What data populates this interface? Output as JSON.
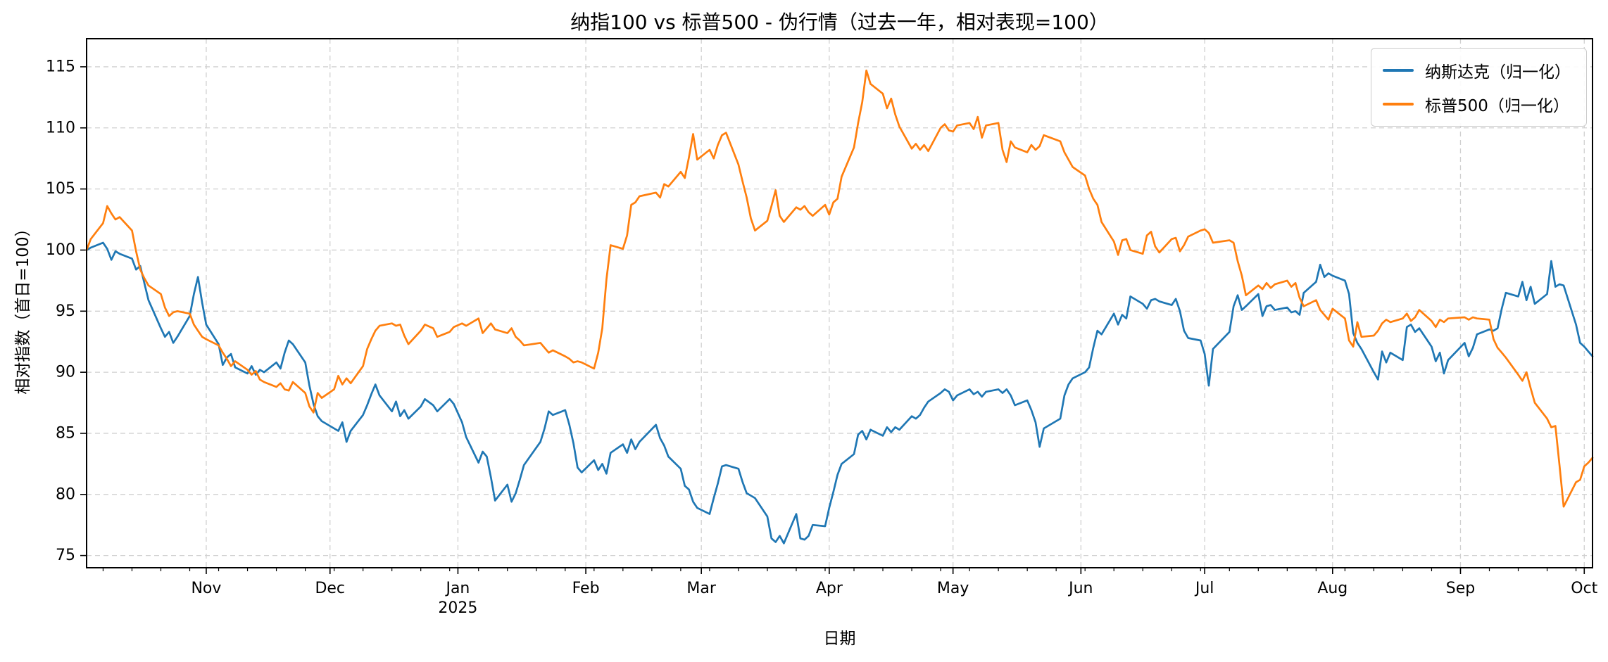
{
  "chart_data": {
    "type": "line",
    "title": "纳指100 vs 标普500 - 伪行情（过去一年，相对表现=100）",
    "xlabel": "日期",
    "ylabel": "相对指数（首日=100）",
    "grid": true,
    "grid_style": "dashed",
    "legend_position": "upper right",
    "background_color": "#ffffff",
    "grid_color": "#d0d0d0",
    "ylim": [
      74.0,
      117.3
    ],
    "yticks": [
      75,
      80,
      85,
      90,
      95,
      100,
      105,
      110,
      115
    ],
    "x_range": [
      "2024-10-03",
      "2025-10-03"
    ],
    "xticks": [
      {
        "date": "2024-11-01",
        "label": "Nov"
      },
      {
        "date": "2024-12-01",
        "label": "Dec"
      },
      {
        "date": "2025-01-01",
        "label": "Jan",
        "sublabel": "2025"
      },
      {
        "date": "2025-02-01",
        "label": "Feb"
      },
      {
        "date": "2025-03-01",
        "label": "Mar"
      },
      {
        "date": "2025-04-01",
        "label": "Apr"
      },
      {
        "date": "2025-05-01",
        "label": "May"
      },
      {
        "date": "2025-06-01",
        "label": "Jun"
      },
      {
        "date": "2025-07-01",
        "label": "Jul"
      },
      {
        "date": "2025-08-01",
        "label": "Aug"
      },
      {
        "date": "2025-09-01",
        "label": "Sep"
      },
      {
        "date": "2025-10-01",
        "label": "Oct"
      }
    ],
    "x": [
      "2024-10-03",
      "2024-10-04",
      "2024-10-07",
      "2024-10-08",
      "2024-10-09",
      "2024-10-10",
      "2024-10-11",
      "2024-10-14",
      "2024-10-15",
      "2024-10-16",
      "2024-10-17",
      "2024-10-18",
      "2024-10-21",
      "2024-10-22",
      "2024-10-23",
      "2024-10-24",
      "2024-10-25",
      "2024-10-28",
      "2024-10-29",
      "2024-10-30",
      "2024-10-31",
      "2024-11-01",
      "2024-11-04",
      "2024-11-05",
      "2024-11-06",
      "2024-11-07",
      "2024-11-08",
      "2024-11-11",
      "2024-11-12",
      "2024-11-13",
      "2024-11-14",
      "2024-11-15",
      "2024-11-18",
      "2024-11-19",
      "2024-11-20",
      "2024-11-21",
      "2024-11-22",
      "2024-11-25",
      "2024-11-26",
      "2024-11-27",
      "2024-11-28",
      "2024-11-29",
      "2024-12-02",
      "2024-12-03",
      "2024-12-04",
      "2024-12-05",
      "2024-12-06",
      "2024-12-09",
      "2024-12-10",
      "2024-12-11",
      "2024-12-12",
      "2024-12-13",
      "2024-12-16",
      "2024-12-17",
      "2024-12-18",
      "2024-12-19",
      "2024-12-20",
      "2024-12-23",
      "2024-12-24",
      "2024-12-26",
      "2024-12-27",
      "2024-12-30",
      "2024-12-31",
      "2025-01-02",
      "2025-01-03",
      "2025-01-06",
      "2025-01-07",
      "2025-01-08",
      "2025-01-09",
      "2025-01-10",
      "2025-01-13",
      "2025-01-14",
      "2025-01-15",
      "2025-01-16",
      "2025-01-17",
      "2025-01-21",
      "2025-01-22",
      "2025-01-23",
      "2025-01-24",
      "2025-01-27",
      "2025-01-28",
      "2025-01-29",
      "2025-01-30",
      "2025-01-31",
      "2025-02-03",
      "2025-02-04",
      "2025-02-05",
      "2025-02-06",
      "2025-02-07",
      "2025-02-10",
      "2025-02-11",
      "2025-02-12",
      "2025-02-13",
      "2025-02-14",
      "2025-02-18",
      "2025-02-19",
      "2025-02-20",
      "2025-02-21",
      "2025-02-24",
      "2025-02-25",
      "2025-02-26",
      "2025-02-27",
      "2025-02-28",
      "2025-03-03",
      "2025-03-04",
      "2025-03-05",
      "2025-03-06",
      "2025-03-07",
      "2025-03-10",
      "2025-03-11",
      "2025-03-12",
      "2025-03-13",
      "2025-03-14",
      "2025-03-17",
      "2025-03-18",
      "2025-03-19",
      "2025-03-20",
      "2025-03-21",
      "2025-03-24",
      "2025-03-25",
      "2025-03-26",
      "2025-03-27",
      "2025-03-28",
      "2025-03-31",
      "2025-04-01",
      "2025-04-02",
      "2025-04-03",
      "2025-04-04",
      "2025-04-07",
      "2025-04-08",
      "2025-04-09",
      "2025-04-10",
      "2025-04-11",
      "2025-04-14",
      "2025-04-15",
      "2025-04-16",
      "2025-04-17",
      "2025-04-18",
      "2025-04-21",
      "2025-04-22",
      "2025-04-23",
      "2025-04-24",
      "2025-04-25",
      "2025-04-28",
      "2025-04-29",
      "2025-04-30",
      "2025-05-01",
      "2025-05-02",
      "2025-05-05",
      "2025-05-06",
      "2025-05-07",
      "2025-05-08",
      "2025-05-09",
      "2025-05-12",
      "2025-05-13",
      "2025-05-14",
      "2025-05-15",
      "2025-05-16",
      "2025-05-19",
      "2025-05-20",
      "2025-05-21",
      "2025-05-22",
      "2025-05-23",
      "2025-05-27",
      "2025-05-28",
      "2025-05-29",
      "2025-05-30",
      "2025-06-02",
      "2025-06-03",
      "2025-06-04",
      "2025-06-05",
      "2025-06-06",
      "2025-06-09",
      "2025-06-10",
      "2025-06-11",
      "2025-06-12",
      "2025-06-13",
      "2025-06-16",
      "2025-06-17",
      "2025-06-18",
      "2025-06-19",
      "2025-06-20",
      "2025-06-23",
      "2025-06-24",
      "2025-06-25",
      "2025-06-26",
      "2025-06-27",
      "2025-06-30",
      "2025-07-01",
      "2025-07-02",
      "2025-07-03",
      "2025-07-07",
      "2025-07-08",
      "2025-07-09",
      "2025-07-10",
      "2025-07-11",
      "2025-07-14",
      "2025-07-15",
      "2025-07-16",
      "2025-07-17",
      "2025-07-18",
      "2025-07-21",
      "2025-07-22",
      "2025-07-23",
      "2025-07-24",
      "2025-07-25",
      "2025-07-28",
      "2025-07-29",
      "2025-07-30",
      "2025-07-31",
      "2025-08-01",
      "2025-08-04",
      "2025-08-05",
      "2025-08-06",
      "2025-08-07",
      "2025-08-08",
      "2025-08-11",
      "2025-08-12",
      "2025-08-13",
      "2025-08-14",
      "2025-08-15",
      "2025-08-18",
      "2025-08-19",
      "2025-08-20",
      "2025-08-21",
      "2025-08-22",
      "2025-08-25",
      "2025-08-26",
      "2025-08-27",
      "2025-08-28",
      "2025-08-29",
      "2025-09-02",
      "2025-09-03",
      "2025-09-04",
      "2025-09-05",
      "2025-09-08",
      "2025-09-09",
      "2025-09-10",
      "2025-09-11",
      "2025-09-12",
      "2025-09-15",
      "2025-09-16",
      "2025-09-17",
      "2025-09-18",
      "2025-09-19",
      "2025-09-22",
      "2025-09-23",
      "2025-09-24",
      "2025-09-25",
      "2025-09-26",
      "2025-09-29",
      "2025-09-30",
      "2025-10-01",
      "2025-10-02",
      "2025-10-03"
    ],
    "series": [
      {
        "name": "纳斯达克（归一化）",
        "color": "#1f77b4",
        "values": [
          100.0,
          100.2,
          100.6,
          100.1,
          99.2,
          99.9,
          99.7,
          99.3,
          98.4,
          98.7,
          97.3,
          95.9,
          93.6,
          92.9,
          93.3,
          92.4,
          92.9,
          94.6,
          96.4,
          97.8,
          95.7,
          93.9,
          92.3,
          90.6,
          91.2,
          91.5,
          90.4,
          89.9,
          90.5,
          89.8,
          90.2,
          90.0,
          90.8,
          90.3,
          91.6,
          92.6,
          92.3,
          90.8,
          88.9,
          87.4,
          86.4,
          86.0,
          85.4,
          85.2,
          85.9,
          84.3,
          85.2,
          86.5,
          87.3,
          88.2,
          89.0,
          88.1,
          86.8,
          87.6,
          86.4,
          86.9,
          86.2,
          87.2,
          87.8,
          87.3,
          86.8,
          87.8,
          87.4,
          85.9,
          84.7,
          82.6,
          83.5,
          83.1,
          81.4,
          79.5,
          80.8,
          79.4,
          80.1,
          81.2,
          82.4,
          84.3,
          85.4,
          86.8,
          86.5,
          86.9,
          85.7,
          84.2,
          82.2,
          81.8,
          82.8,
          82.0,
          82.5,
          81.7,
          83.4,
          84.1,
          83.4,
          84.5,
          83.7,
          84.3,
          85.7,
          84.6,
          84.0,
          83.1,
          82.1,
          80.7,
          80.4,
          79.4,
          78.9,
          78.4,
          79.7,
          80.9,
          82.3,
          82.4,
          82.1,
          81.0,
          80.1,
          79.9,
          79.7,
          78.2,
          76.4,
          76.1,
          76.6,
          76.0,
          78.4,
          76.4,
          76.3,
          76.6,
          77.5,
          77.4,
          78.9,
          80.2,
          81.6,
          82.5,
          83.3,
          84.9,
          85.2,
          84.5,
          85.3,
          84.8,
          85.5,
          85.1,
          85.5,
          85.3,
          86.4,
          86.2,
          86.5,
          87.1,
          87.6,
          88.3,
          88.6,
          88.4,
          87.7,
          88.1,
          88.6,
          88.2,
          88.4,
          88.0,
          88.4,
          88.6,
          88.3,
          88.6,
          88.1,
          87.3,
          87.7,
          86.9,
          85.9,
          83.9,
          85.4,
          86.2,
          88.1,
          89.0,
          89.5,
          90.0,
          90.4,
          92.0,
          93.4,
          93.1,
          94.8,
          93.9,
          94.7,
          94.4,
          96.2,
          95.6,
          95.2,
          95.9,
          96.0,
          95.8,
          95.5,
          96.0,
          95.0,
          93.4,
          92.8,
          92.6,
          91.5,
          88.9,
          91.9,
          93.3,
          95.4,
          96.3,
          95.1,
          95.4,
          96.4,
          94.6,
          95.4,
          95.5,
          95.1,
          95.3,
          94.9,
          95.0,
          94.7,
          96.5,
          97.4,
          98.8,
          97.8,
          98.1,
          97.9,
          97.5,
          96.4,
          93.2,
          92.4,
          91.9,
          90.0,
          89.4,
          91.7,
          90.8,
          91.6,
          91.0,
          93.7,
          93.9,
          93.3,
          93.6,
          92.1,
          90.9,
          91.6,
          89.9,
          91.0,
          92.4,
          91.3,
          92.0,
          93.1,
          93.5,
          93.4,
          93.6,
          95.2,
          96.5,
          96.2,
          97.4,
          95.9,
          97.0,
          95.6,
          96.4,
          99.1,
          97.0,
          97.2,
          97.1,
          93.9,
          92.4,
          92.1,
          91.7,
          91.3
        ]
      },
      {
        "name": "标普500（归一化）",
        "color": "#ff7f0e",
        "values": [
          100.0,
          100.9,
          102.2,
          103.6,
          103.0,
          102.5,
          102.7,
          101.6,
          99.9,
          98.4,
          97.7,
          97.1,
          96.4,
          95.3,
          94.6,
          94.9,
          95.0,
          94.8,
          93.9,
          93.4,
          92.9,
          92.7,
          92.2,
          91.6,
          91.1,
          90.5,
          90.9,
          90.2,
          89.8,
          90.1,
          89.4,
          89.2,
          88.8,
          89.1,
          88.6,
          88.5,
          89.2,
          88.3,
          87.2,
          86.7,
          88.3,
          87.9,
          88.6,
          89.7,
          89.0,
          89.5,
          89.1,
          90.5,
          91.9,
          92.7,
          93.4,
          93.8,
          94.0,
          93.8,
          93.9,
          93.0,
          92.3,
          93.4,
          93.9,
          93.6,
          92.9,
          93.3,
          93.7,
          94.0,
          93.8,
          94.4,
          93.2,
          93.6,
          94.0,
          93.5,
          93.2,
          93.6,
          92.9,
          92.6,
          92.2,
          92.4,
          92.0,
          91.6,
          91.8,
          91.3,
          91.1,
          90.8,
          90.9,
          90.8,
          90.3,
          91.6,
          93.6,
          97.6,
          100.4,
          100.1,
          101.2,
          103.7,
          103.9,
          104.4,
          104.7,
          104.3,
          105.4,
          105.2,
          106.4,
          105.9,
          107.6,
          109.5,
          107.4,
          108.2,
          107.5,
          108.6,
          109.4,
          109.6,
          107.0,
          105.6,
          104.3,
          102.6,
          101.6,
          102.4,
          103.6,
          104.9,
          102.8,
          102.3,
          103.5,
          103.3,
          103.6,
          103.1,
          102.8,
          103.7,
          102.9,
          103.9,
          104.2,
          106.0,
          108.4,
          110.4,
          112.1,
          114.7,
          113.6,
          112.8,
          111.6,
          112.4,
          111.1,
          110.1,
          108.3,
          108.7,
          108.2,
          108.6,
          108.1,
          110.0,
          110.3,
          109.8,
          109.7,
          110.2,
          110.4,
          109.9,
          110.9,
          109.2,
          110.2,
          110.4,
          108.2,
          107.2,
          108.9,
          108.4,
          108.0,
          108.6,
          108.2,
          108.5,
          109.4,
          108.9,
          108.0,
          107.4,
          106.8,
          106.1,
          105.0,
          104.2,
          103.7,
          102.3,
          100.7,
          99.6,
          100.8,
          100.9,
          100.0,
          99.7,
          101.2,
          101.5,
          100.3,
          99.8,
          100.9,
          101.0,
          99.9,
          100.4,
          101.1,
          101.6,
          101.7,
          101.4,
          100.6,
          100.8,
          100.6,
          99.1,
          97.9,
          96.3,
          97.1,
          96.8,
          97.3,
          96.9,
          97.2,
          97.5,
          97.0,
          97.3,
          96.1,
          95.4,
          95.9,
          95.1,
          94.7,
          94.3,
          95.2,
          94.4,
          92.6,
          92.1,
          94.1,
          92.9,
          93.0,
          93.4,
          94.0,
          94.3,
          94.1,
          94.4,
          94.8,
          94.2,
          94.5,
          95.1,
          94.2,
          93.7,
          94.3,
          94.1,
          94.4,
          94.5,
          94.3,
          94.5,
          94.4,
          94.3,
          92.7,
          92.0,
          91.6,
          91.2,
          89.8,
          89.3,
          90.0,
          88.7,
          87.5,
          86.2,
          85.5,
          85.6,
          82.4,
          79.0,
          81.0,
          81.2,
          82.3,
          82.6,
          83.0
        ]
      }
    ]
  }
}
